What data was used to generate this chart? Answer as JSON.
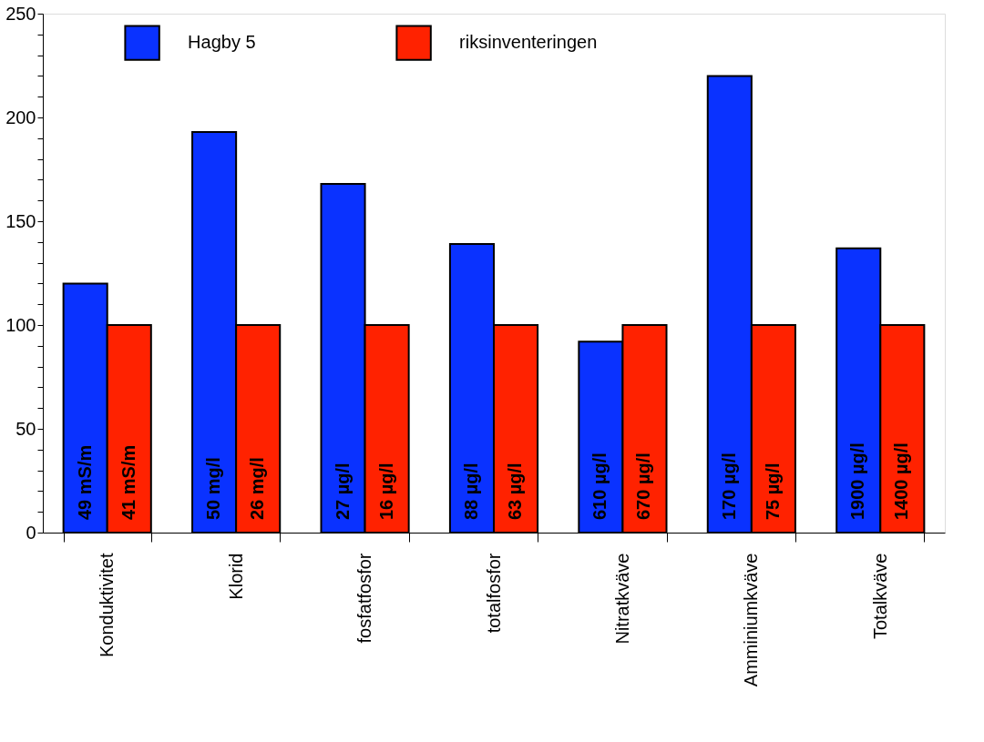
{
  "chart_data": {
    "type": "bar",
    "categories": [
      "Konduktivitet",
      "Klorid",
      "fosfatfosfor",
      "totalfosfor",
      "Nitratkväve",
      "Amminiumkväve",
      "Totalkväve"
    ],
    "series": [
      {
        "name": "Hagby 5",
        "color": "#0a32ff",
        "values": [
          120,
          193,
          168,
          139,
          92,
          220,
          137
        ]
      },
      {
        "name": "riksinventeringen",
        "color": "#ff2200",
        "values": [
          100,
          100,
          100,
          100,
          100,
          100,
          100
        ]
      }
    ],
    "annotations": [
      {
        "text": "49 mS/m",
        "x": "Konduktivitet"
      },
      {
        "text": "41 mS/m",
        "x": "Konduktivitet"
      },
      {
        "text": "50 mg/l",
        "x": "Klorid"
      },
      {
        "text": "26 mg/l",
        "x": "Klorid"
      },
      {
        "text": "27 µg/l",
        "x": "fosfatfosfor"
      },
      {
        "text": "16 µg/l",
        "x": "fosfatfosfor"
      },
      {
        "text": "88 µg/l",
        "x": "totalfosfor"
      },
      {
        "text": "63 µg/l",
        "x": "totalfosfor"
      },
      {
        "text": "610 µg/l",
        "x": "Nitratkväve"
      },
      {
        "text": "670 µg/l",
        "x": "Nitratkväve"
      },
      {
        "text": "170 µg/l",
        "x": "Amminiumkväve"
      },
      {
        "text": "75 µg/l",
        "x": "Amminiumkväve"
      },
      {
        "text": "1900 µg/l",
        "x": "Totalkväve"
      },
      {
        "text": "1400 µg/l",
        "x": "Totalkväve"
      }
    ],
    "ylim": [
      0,
      250
    ],
    "yticks": [
      0,
      {
        "value": 10,
        "label": null
      },
      {
        "value": 20,
        "label": null
      },
      {
        "value": 30,
        "label": null
      },
      {
        "value": 40,
        "label": null
      },
      50,
      {
        "value": 60,
        "label": null
      },
      {
        "value": 70,
        "label": null
      },
      {
        "value": 80,
        "label": null
      },
      {
        "value": 90,
        "label": null
      },
      100,
      {
        "value": 110,
        "label": null
      },
      {
        "value": 120,
        "label": null
      },
      {
        "value": 130,
        "label": null
      },
      {
        "value": 140,
        "label": null
      },
      150,
      {
        "value": 160,
        "label": null
      },
      {
        "value": 170,
        "label": null
      },
      {
        "value": 180,
        "label": null
      },
      {
        "value": 190,
        "label": null
      },
      200,
      {
        "value": 210,
        "label": null
      },
      {
        "value": 220,
        "label": null
      },
      {
        "value": 230,
        "label": null
      },
      {
        "value": 240,
        "label": null
      },
      250
    ],
    "grid": false,
    "legend": "top"
  }
}
